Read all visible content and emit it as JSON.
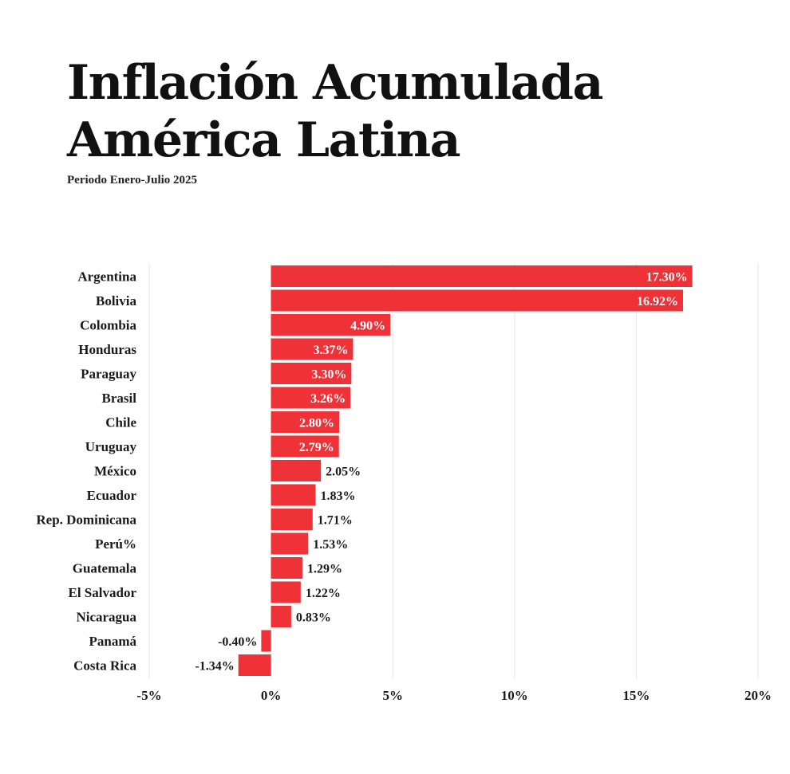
{
  "header": {
    "title_line1": "Inflación Acumulada",
    "title_line2": "América Latina",
    "subtitle": "Periodo Enero-Julio 2025"
  },
  "colors": {
    "bar": "#ee3237",
    "grid": "#e6e6e6",
    "label_inside": "#ffffff",
    "label_outside": "#1a1a1a"
  },
  "chart_data": {
    "type": "bar",
    "orientation": "horizontal",
    "title": "Inflación Acumulada América Latina",
    "subtitle": "Periodo Enero-Julio 2025",
    "categories": [
      "Argentina",
      "Bolivia",
      "Colombia",
      "Honduras",
      "Paraguay",
      "Brasil",
      "Chile",
      "Uruguay",
      "México",
      "Ecuador",
      "Rep. Dominicana",
      "Perú%",
      "Guatemala",
      "El Salvador",
      "Nicaragua",
      "Panamá",
      "Costa Rica"
    ],
    "values": [
      17.3,
      16.92,
      4.9,
      3.37,
      3.3,
      3.26,
      2.8,
      2.79,
      2.05,
      1.83,
      1.71,
      1.53,
      1.29,
      1.22,
      0.83,
      -0.4,
      -1.34
    ],
    "value_labels": [
      "17.30%",
      "16.92%",
      "4.90%",
      "3.37%",
      "3.30%",
      "3.26%",
      "2.80%",
      "2.79%",
      "2.05%",
      "1.83%",
      "1.71%",
      "1.53%",
      "1.29%",
      "1.22%",
      "0.83%",
      "-0.40%",
      "-1.34%"
    ],
    "xlim": [
      -5,
      20
    ],
    "xticks": [
      -5,
      0,
      5,
      10,
      15,
      20
    ],
    "xtick_labels": [
      "-5%",
      "0%",
      "5%",
      "10%",
      "15%",
      "20%"
    ],
    "grid": "vertical",
    "legend": "none"
  }
}
